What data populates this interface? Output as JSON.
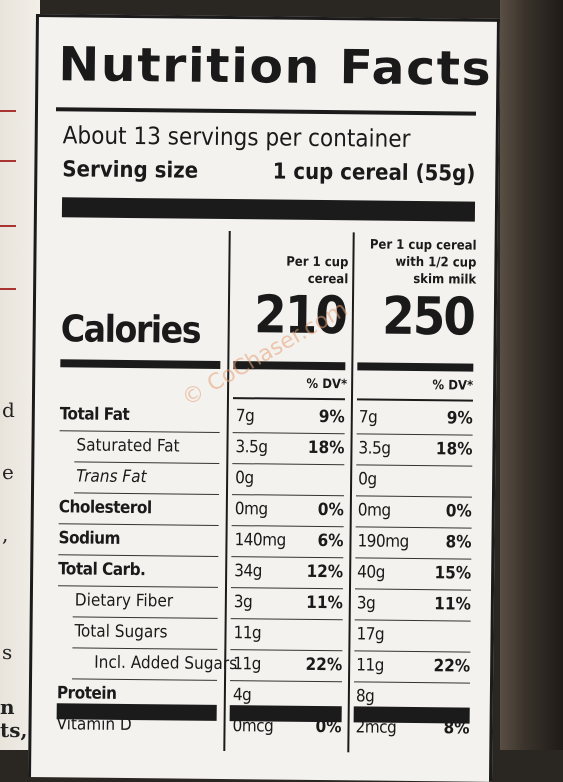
{
  "label": {
    "title": "Nutrition Facts",
    "servings_per_container": "About 13 servings per container",
    "serving_size_label": "Serving size",
    "serving_size_value": "1 cup cereal (55g)",
    "col1_header": [
      "Per 1 cup",
      "cereal"
    ],
    "col2_header": [
      "Per 1 cup cereal",
      "with 1/2 cup",
      "skim milk"
    ],
    "calories_label": "Calories",
    "calories_col1": "210",
    "calories_col2": "250",
    "dv_header": "% DV*",
    "rows": [
      {
        "name": "Total Fat",
        "style": "b",
        "indent": 0,
        "v1": "7g",
        "p1": "9%",
        "v2": "7g",
        "p2": "9%"
      },
      {
        "name": "Saturated Fat",
        "style": "",
        "indent": 1,
        "v1": "3.5g",
        "p1": "18%",
        "v2": "3.5g",
        "p2": "18%"
      },
      {
        "name": "Trans Fat",
        "style": "i",
        "indent": 1,
        "v1": "0g",
        "p1": "",
        "v2": "0g",
        "p2": ""
      },
      {
        "name": "Cholesterol",
        "style": "b",
        "indent": 0,
        "v1": "0mg",
        "p1": "0%",
        "v2": "0mg",
        "p2": "0%"
      },
      {
        "name": "Sodium",
        "style": "b",
        "indent": 0,
        "v1": "140mg",
        "p1": "6%",
        "v2": "190mg",
        "p2": "8%"
      },
      {
        "name": "Total Carb.",
        "style": "b",
        "indent": 0,
        "v1": "34g",
        "p1": "12%",
        "v2": "40g",
        "p2": "15%"
      },
      {
        "name": "Dietary Fiber",
        "style": "",
        "indent": 1,
        "v1": "3g",
        "p1": "11%",
        "v2": "3g",
        "p2": "11%"
      },
      {
        "name": "Total Sugars",
        "style": "",
        "indent": 1,
        "v1": "11g",
        "p1": "",
        "v2": "17g",
        "p2": ""
      },
      {
        "name": "Incl. Added Sugars",
        "style": "",
        "indent": 2,
        "v1": "11g",
        "p1": "22%",
        "v2": "11g",
        "p2": "22%"
      },
      {
        "name": "Protein",
        "style": "b",
        "indent": 0,
        "v1": "4g",
        "p1": "",
        "v2": "8g",
        "p2": ""
      },
      {
        "name": "Vitamin D",
        "style": "",
        "indent": 0,
        "v1": "0mcg",
        "p1": "0%",
        "v2": "2mcg",
        "p2": "8%"
      }
    ]
  },
  "side_text": [
    "d",
    "e",
    ",",
    "s",
    "n",
    "ts,"
  ],
  "watermark": "© CoChaser.com"
}
